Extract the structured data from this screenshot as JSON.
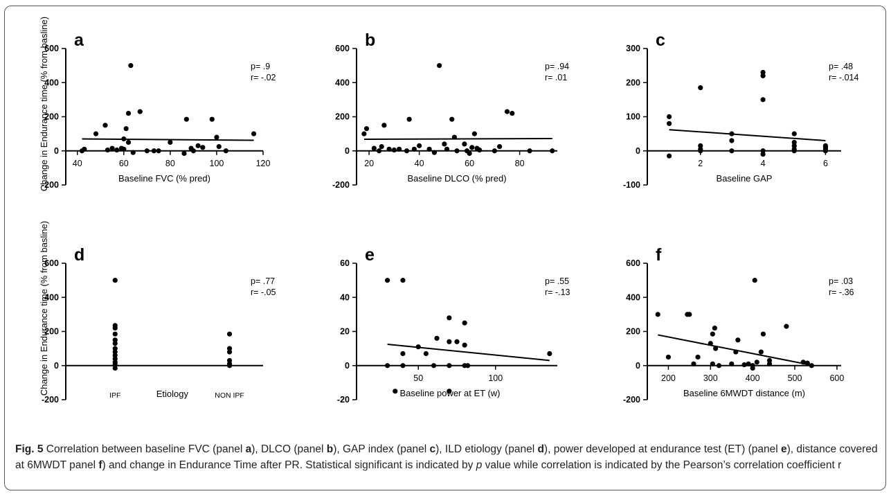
{
  "y_axis_label": "Change in Endurance time (% from basline)",
  "caption": {
    "fig": "Fig. 5",
    "p1": " Correlation between baseline FVC (panel ",
    "a": "a",
    "p2": "), DLCO (panel ",
    "b": "b",
    "p3": "), GAP index (panel ",
    "c": "c",
    "p4": "), ILD etiology (panel ",
    "d": "d",
    "p5": "), power developed at endurance test (ET) (panel ",
    "e": "e",
    "p6": "), distance covered at 6MWDT panel ",
    "f": "f",
    "p7": ") and change in Endurance Time after PR. Statistical significant is indicated by ",
    "p": "p",
    "p8": " value while correlation is indicated by the Pearson’s correlation coefficient r"
  },
  "chart_data": [
    {
      "panel": "a",
      "type": "scatter",
      "xlabel": "Baseline FVC (% pred)",
      "xlim": [
        35,
        120
      ],
      "ylim": [
        -200,
        600
      ],
      "xticks": [
        40,
        60,
        80,
        100,
        120
      ],
      "yticks": [
        -200,
        0,
        200,
        400,
        600
      ],
      "stat_p": "p= .9",
      "stat_r": "r= -.02",
      "points": [
        [
          42,
          0
        ],
        [
          43,
          10
        ],
        [
          48,
          100
        ],
        [
          52,
          150
        ],
        [
          53,
          5
        ],
        [
          55,
          15
        ],
        [
          57,
          5
        ],
        [
          59,
          15
        ],
        [
          60,
          70
        ],
        [
          60,
          10
        ],
        [
          61,
          130
        ],
        [
          62,
          50
        ],
        [
          62,
          220
        ],
        [
          63,
          500
        ],
        [
          64,
          -10
        ],
        [
          67,
          230
        ],
        [
          70,
          0
        ],
        [
          73,
          0
        ],
        [
          75,
          0
        ],
        [
          80,
          50
        ],
        [
          86,
          -15
        ],
        [
          87,
          185
        ],
        [
          89,
          15
        ],
        [
          90,
          0
        ],
        [
          92,
          30
        ],
        [
          94,
          20
        ],
        [
          98,
          185
        ],
        [
          100,
          80
        ],
        [
          101,
          25
        ],
        [
          104,
          0
        ],
        [
          116,
          100
        ]
      ],
      "fit": [
        [
          42,
          70
        ],
        [
          116,
          62
        ]
      ]
    },
    {
      "panel": "b",
      "type": "scatter",
      "xlabel": "Baseline DLCO (% pred)",
      "xlim": [
        15,
        95
      ],
      "ylim": [
        -200,
        600
      ],
      "xticks": [
        20,
        40,
        60,
        80
      ],
      "yticks": [
        -200,
        0,
        200,
        400,
        600
      ],
      "stat_p": "p= .94",
      "stat_r": "r= .01",
      "points": [
        [
          18,
          100
        ],
        [
          19,
          130
        ],
        [
          22,
          15
        ],
        [
          24,
          0
        ],
        [
          25,
          25
        ],
        [
          26,
          150
        ],
        [
          28,
          10
        ],
        [
          30,
          5
        ],
        [
          32,
          10
        ],
        [
          35,
          0
        ],
        [
          36,
          185
        ],
        [
          38,
          10
        ],
        [
          40,
          30
        ],
        [
          44,
          10
        ],
        [
          46,
          -10
        ],
        [
          48,
          500
        ],
        [
          50,
          40
        ],
        [
          51,
          10
        ],
        [
          53,
          185
        ],
        [
          54,
          80
        ],
        [
          55,
          0
        ],
        [
          58,
          40
        ],
        [
          59,
          0
        ],
        [
          60,
          -15
        ],
        [
          61,
          20
        ],
        [
          62,
          100
        ],
        [
          63,
          15
        ],
        [
          64,
          5
        ],
        [
          70,
          0
        ],
        [
          72,
          25
        ],
        [
          75,
          230
        ],
        [
          77,
          220
        ],
        [
          84,
          0
        ],
        [
          93,
          0
        ]
      ],
      "fit": [
        [
          18,
          68
        ],
        [
          93,
          72
        ]
      ]
    },
    {
      "panel": "c",
      "type": "scatter",
      "xlabel": "Baseline GAP",
      "xlim": [
        0.3,
        6.5
      ],
      "ylim": [
        -100,
        300
      ],
      "xticks": [
        2,
        4,
        6
      ],
      "yticks": [
        -100,
        0,
        100,
        200,
        300
      ],
      "stat_p": "p= .48",
      "stat_r": "r= -.014",
      "points": [
        [
          1,
          100
        ],
        [
          1,
          80
        ],
        [
          1,
          -15
        ],
        [
          2,
          185
        ],
        [
          2,
          15
        ],
        [
          2,
          5
        ],
        [
          2,
          0
        ],
        [
          3,
          50
        ],
        [
          3,
          30
        ],
        [
          3,
          0
        ],
        [
          4,
          230
        ],
        [
          4,
          220
        ],
        [
          4,
          150
        ],
        [
          4,
          0
        ],
        [
          4,
          -10
        ],
        [
          5,
          50
        ],
        [
          5,
          25
        ],
        [
          5,
          15
        ],
        [
          5,
          5
        ],
        [
          5,
          0
        ],
        [
          6,
          15
        ],
        [
          6,
          10
        ],
        [
          6,
          5
        ],
        [
          6,
          0
        ]
      ],
      "fit": [
        [
          1,
          62
        ],
        [
          6,
          30
        ]
      ]
    },
    {
      "panel": "d",
      "type": "scatter",
      "xlabel": "Etiology",
      "categories": [
        "IPF",
        "NON IPF"
      ],
      "ylim": [
        -200,
        600
      ],
      "yticks": [
        -200,
        0,
        200,
        400,
        600
      ],
      "stat_p": "p= .77",
      "stat_r": "r= -.05",
      "points": [
        [
          "IPF",
          500
        ],
        [
          "IPF",
          235
        ],
        [
          "IPF",
          220
        ],
        [
          "IPF",
          185
        ],
        [
          "IPF",
          150
        ],
        [
          "IPF",
          130
        ],
        [
          "IPF",
          100
        ],
        [
          "IPF",
          80
        ],
        [
          "IPF",
          60
        ],
        [
          "IPF",
          40
        ],
        [
          "IPF",
          20
        ],
        [
          "IPF",
          5
        ],
        [
          "IPF",
          -15
        ],
        [
          "NON IPF",
          185
        ],
        [
          "NON IPF",
          100
        ],
        [
          "NON IPF",
          80
        ],
        [
          "NON IPF",
          30
        ],
        [
          "NON IPF",
          10
        ],
        [
          "NON IPF",
          0
        ]
      ]
    },
    {
      "panel": "e",
      "type": "scatter",
      "xlabel": "Baseline power at ET (w)",
      "xlim": [
        10,
        140
      ],
      "ylim": [
        -20,
        60
      ],
      "xticks": [
        50,
        100
      ],
      "yticks": [
        -20,
        0,
        20,
        40,
        60
      ],
      "stat_p": "p= .55",
      "stat_r": "r= -.13",
      "points": [
        [
          30,
          50
        ],
        [
          30,
          0
        ],
        [
          35,
          -15
        ],
        [
          40,
          50
        ],
        [
          40,
          7
        ],
        [
          40,
          0
        ],
        [
          50,
          11
        ],
        [
          55,
          7
        ],
        [
          60,
          0
        ],
        [
          62,
          16
        ],
        [
          70,
          28
        ],
        [
          70,
          14
        ],
        [
          70,
          0
        ],
        [
          70,
          -15
        ],
        [
          75,
          14
        ],
        [
          80,
          25
        ],
        [
          80,
          12
        ],
        [
          80,
          0
        ],
        [
          82,
          0
        ],
        [
          135,
          7
        ]
      ],
      "fit": [
        [
          30,
          12.5
        ],
        [
          135,
          3
        ]
      ]
    },
    {
      "panel": "f",
      "type": "scatter",
      "xlabel": "Baseline 6MWDT distance (m)",
      "xlim": [
        150,
        610
      ],
      "ylim": [
        -200,
        600
      ],
      "xticks": [
        200,
        300,
        400,
        500,
        600
      ],
      "yticks": [
        -200,
        0,
        200,
        400,
        600
      ],
      "stat_p": "p= .03",
      "stat_r": "r= -.36",
      "points": [
        [
          175,
          300
        ],
        [
          200,
          50
        ],
        [
          245,
          300
        ],
        [
          250,
          300
        ],
        [
          260,
          10
        ],
        [
          270,
          50
        ],
        [
          300,
          130
        ],
        [
          305,
          185
        ],
        [
          305,
          10
        ],
        [
          310,
          220
        ],
        [
          312,
          100
        ],
        [
          320,
          0
        ],
        [
          350,
          10
        ],
        [
          360,
          80
        ],
        [
          365,
          150
        ],
        [
          380,
          5
        ],
        [
          390,
          10
        ],
        [
          400,
          0
        ],
        [
          400,
          -15
        ],
        [
          405,
          500
        ],
        [
          410,
          20
        ],
        [
          420,
          80
        ],
        [
          425,
          185
        ],
        [
          440,
          30
        ],
        [
          440,
          10
        ],
        [
          480,
          230
        ],
        [
          520,
          20
        ],
        [
          530,
          15
        ],
        [
          540,
          0
        ]
      ],
      "fit": [
        [
          175,
          180
        ],
        [
          545,
          0
        ]
      ]
    }
  ]
}
